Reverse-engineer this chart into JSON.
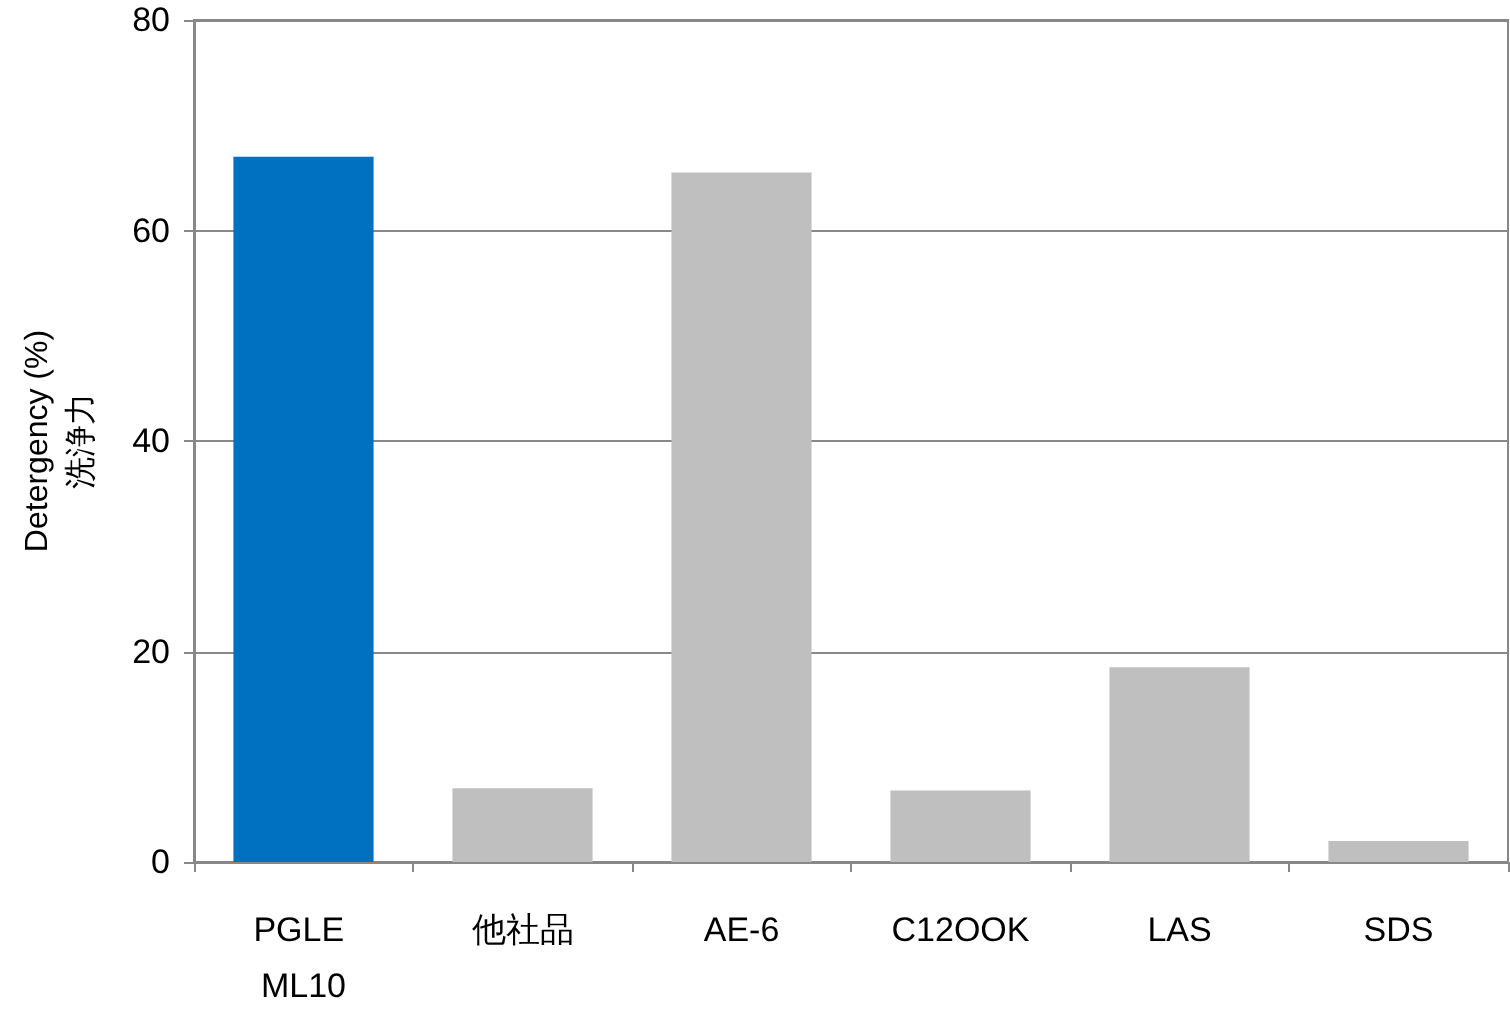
{
  "chart_data": {
    "type": "bar",
    "ylabel": "Detergency (%)\n洗浄力",
    "categories": [
      "PGLE ML10",
      "他社品",
      "AE-6",
      "C12OOK",
      "LAS",
      "SDS"
    ],
    "values": [
      67,
      7,
      65.5,
      6.8,
      18.5,
      2
    ],
    "colors": [
      "#0070c0",
      "#bfbfbf",
      "#bfbfbf",
      "#bfbfbf",
      "#bfbfbf",
      "#bfbfbf"
    ],
    "ylim": [
      0,
      80
    ],
    "yticks": [
      0,
      20,
      40,
      60,
      80
    ],
    "grid": "y"
  }
}
